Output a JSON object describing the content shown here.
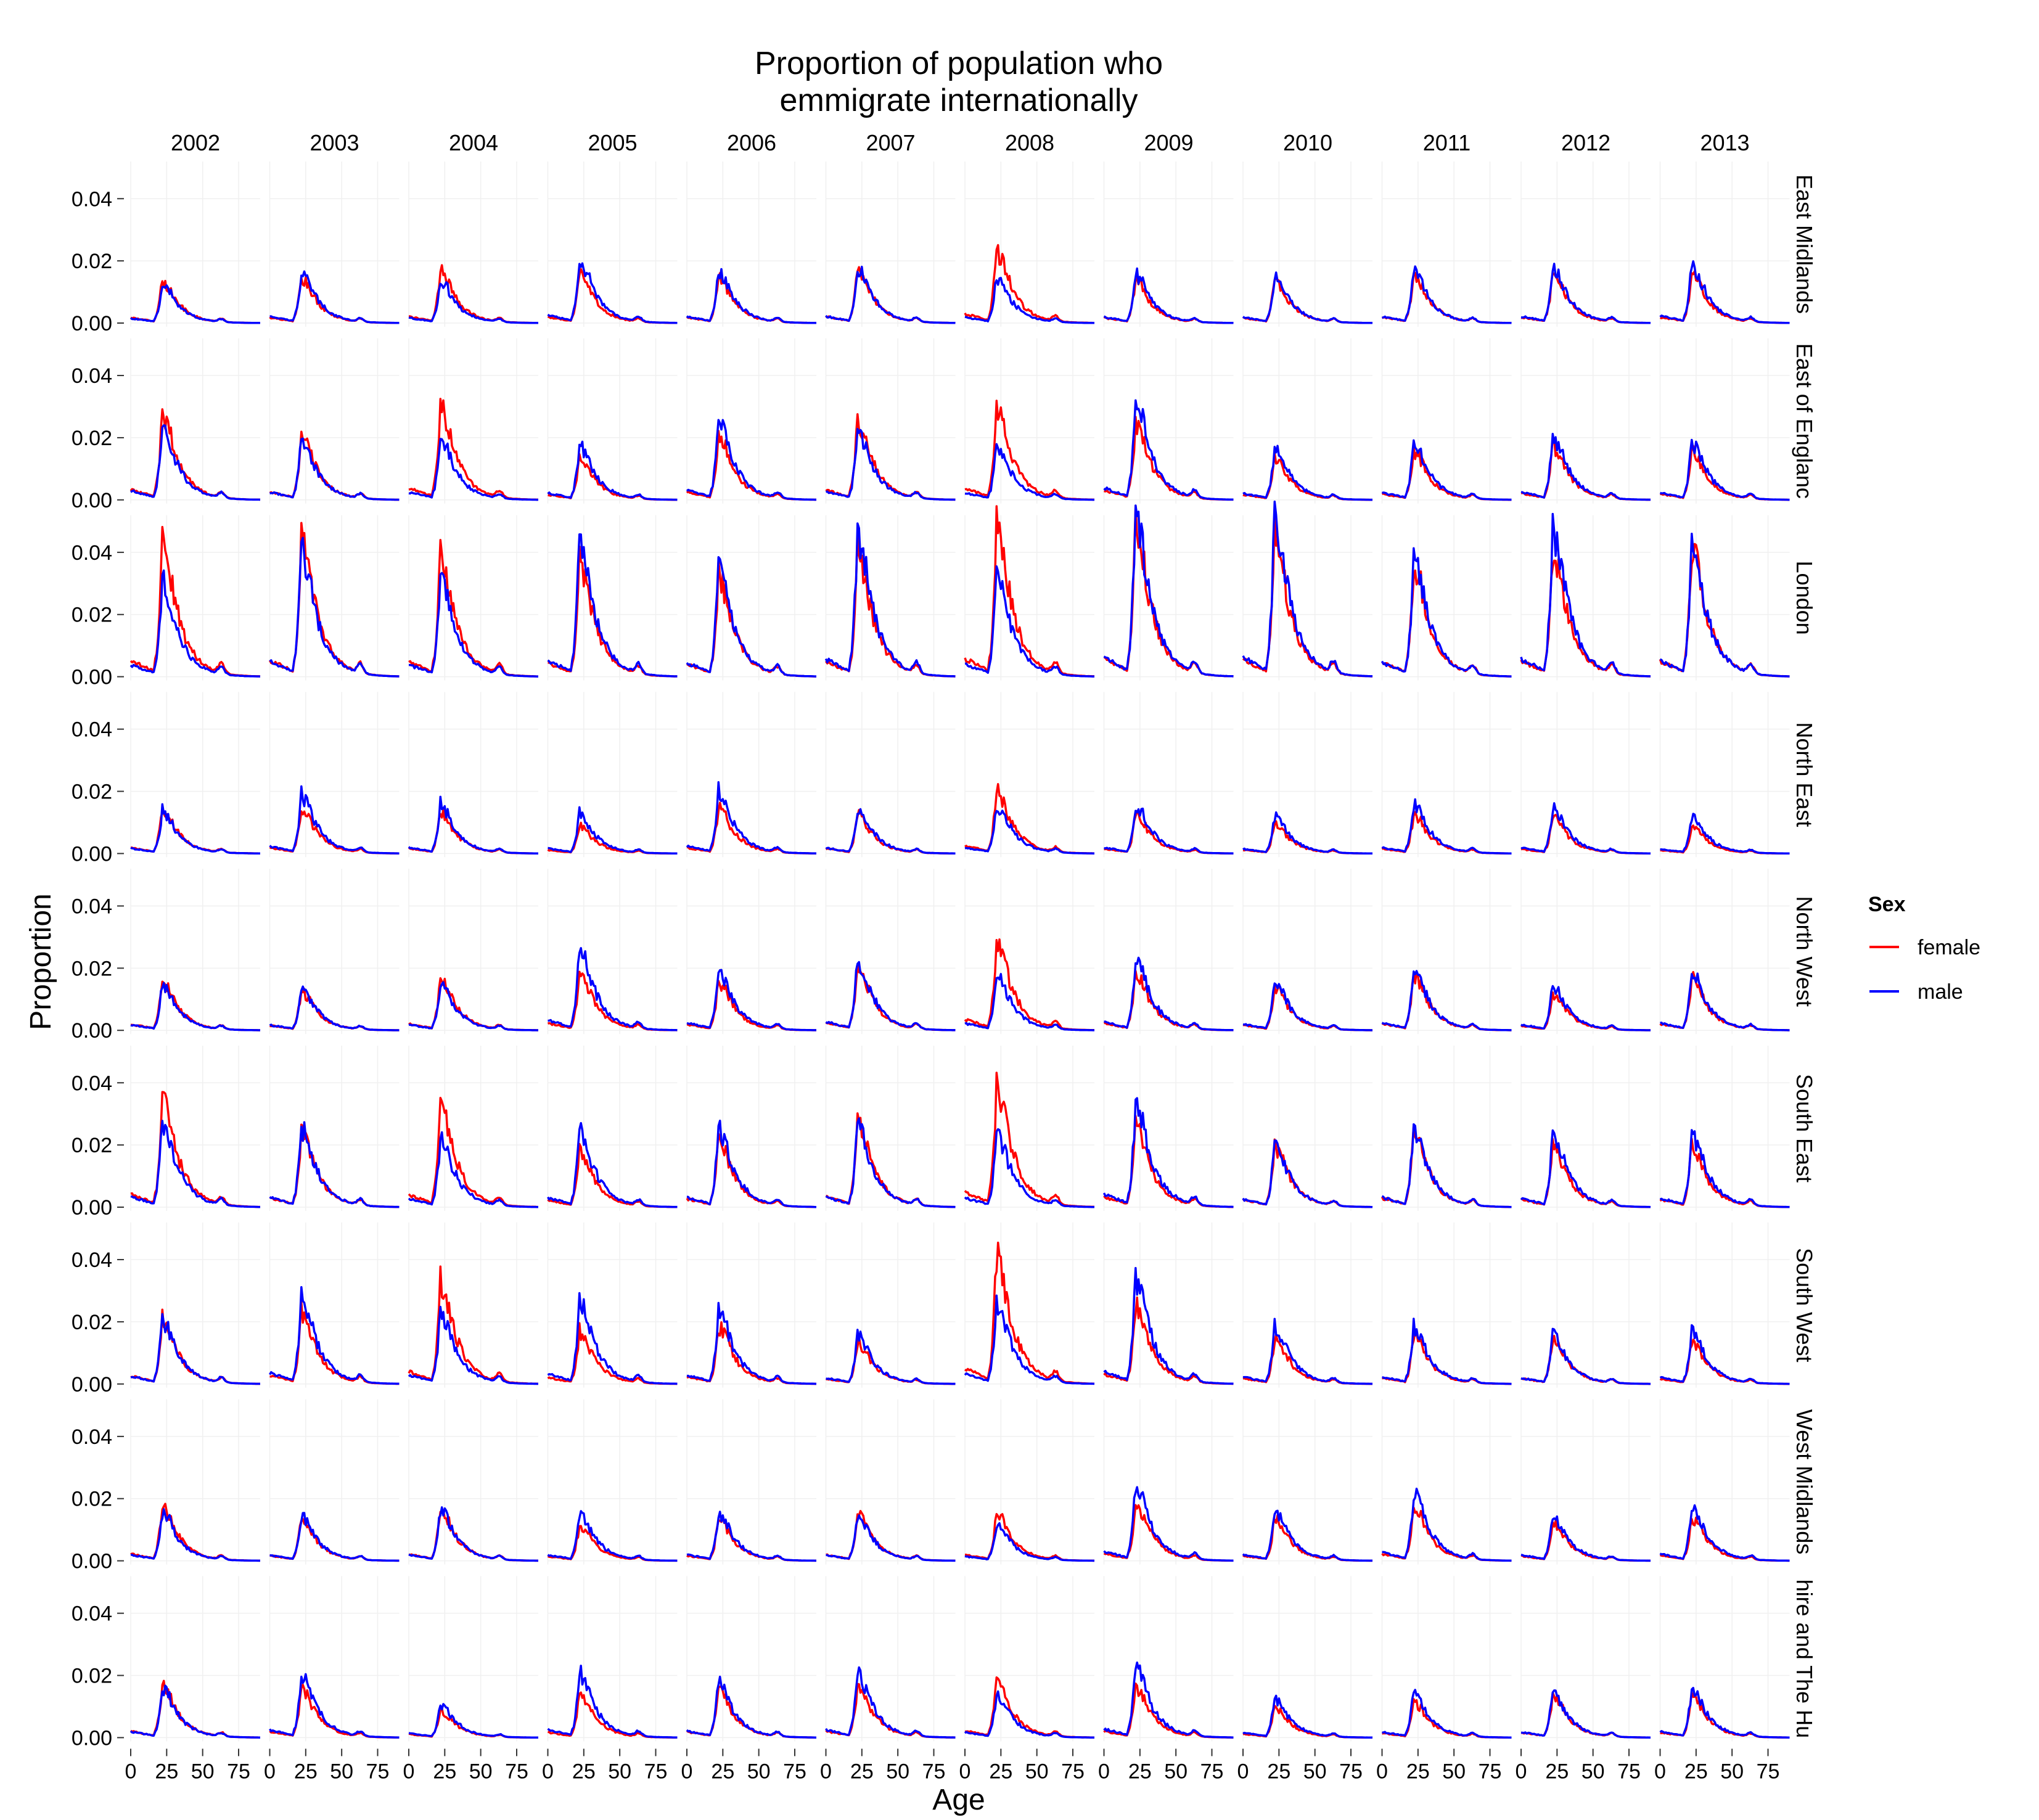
{
  "chart_data": {
    "type": "line",
    "title_lines": [
      "Proportion of population who",
      "emmigrate internationally"
    ],
    "xlabel": "Age",
    "ylabel": "Proportion",
    "legend": {
      "title": "Sex",
      "placement": "right",
      "entries": [
        {
          "name": "female",
          "color": "#ff0000"
        },
        {
          "name": "male",
          "color": "#0000ff"
        }
      ]
    },
    "grid": true,
    "years": [
      "2002",
      "2003",
      "2004",
      "2005",
      "2006",
      "2007",
      "2008",
      "2009",
      "2010",
      "2011",
      "2012",
      "2013"
    ],
    "regions": [
      "East Midlands",
      "East of Englanc",
      "London",
      "North East",
      "North West",
      "South East",
      "South West",
      "West Midlands",
      "hire and The Hu"
    ],
    "xlim": [
      0,
      90
    ],
    "ylim": [
      0,
      0.046
    ],
    "x_ticks": [
      0,
      25,
      50,
      75
    ],
    "x_tick_labels": [
      "0",
      "25",
      "50",
      "75"
    ],
    "y_ticks": [
      0,
      0.02,
      0.04
    ],
    "y_tick_labels": [
      "0.00",
      "0.02",
      "0.04"
    ],
    "note": "Each panel shows the female and male series over age 0-90; approximate peak proportions (around age 22-27) read from the chart are listed per region in year order.",
    "peaks": {
      "East Midlands": {
        "female": [
          0.014,
          0.015,
          0.017,
          0.016,
          0.015,
          0.017,
          0.024,
          0.014,
          0.014,
          0.016,
          0.016,
          0.016
        ],
        "male": [
          0.013,
          0.017,
          0.014,
          0.021,
          0.017,
          0.018,
          0.015,
          0.016,
          0.015,
          0.017,
          0.018,
          0.019
        ]
      },
      "East of Englanc": {
        "female": [
          0.028,
          0.021,
          0.031,
          0.014,
          0.021,
          0.026,
          0.03,
          0.025,
          0.014,
          0.016,
          0.018,
          0.016
        ],
        "male": [
          0.024,
          0.02,
          0.02,
          0.018,
          0.026,
          0.023,
          0.018,
          0.032,
          0.017,
          0.019,
          0.021,
          0.019
        ]
      },
      "London": {
        "female": [
          0.043,
          0.044,
          0.039,
          0.037,
          0.033,
          0.04,
          0.048,
          0.048,
          0.045,
          0.037,
          0.041,
          0.042
        ],
        "male": [
          0.031,
          0.041,
          0.031,
          0.043,
          0.036,
          0.046,
          0.033,
          0.051,
          0.052,
          0.038,
          0.048,
          0.042
        ]
      },
      "North East": {
        "female": [
          0.015,
          0.015,
          0.014,
          0.009,
          0.015,
          0.013,
          0.021,
          0.013,
          0.01,
          0.013,
          0.012,
          0.009
        ],
        "male": [
          0.014,
          0.019,
          0.016,
          0.013,
          0.02,
          0.015,
          0.016,
          0.016,
          0.012,
          0.016,
          0.015,
          0.012
        ]
      },
      "North West": {
        "female": [
          0.016,
          0.013,
          0.017,
          0.019,
          0.016,
          0.021,
          0.029,
          0.019,
          0.014,
          0.018,
          0.012,
          0.017
        ],
        "male": [
          0.015,
          0.014,
          0.015,
          0.027,
          0.02,
          0.023,
          0.018,
          0.023,
          0.016,
          0.02,
          0.015,
          0.019
        ]
      },
      "South East": {
        "female": [
          0.035,
          0.025,
          0.033,
          0.019,
          0.022,
          0.028,
          0.04,
          0.027,
          0.02,
          0.024,
          0.02,
          0.02
        ],
        "male": [
          0.028,
          0.026,
          0.022,
          0.025,
          0.026,
          0.027,
          0.024,
          0.034,
          0.021,
          0.026,
          0.024,
          0.024
        ]
      },
      "South West": {
        "female": [
          0.021,
          0.023,
          0.033,
          0.017,
          0.019,
          0.014,
          0.042,
          0.026,
          0.015,
          0.016,
          0.015,
          0.014
        ],
        "male": [
          0.021,
          0.029,
          0.023,
          0.027,
          0.024,
          0.016,
          0.026,
          0.034,
          0.019,
          0.019,
          0.016,
          0.017
        ]
      },
      "West Midlands": {
        "female": [
          0.018,
          0.014,
          0.017,
          0.012,
          0.014,
          0.016,
          0.016,
          0.019,
          0.014,
          0.018,
          0.013,
          0.014
        ],
        "male": [
          0.016,
          0.015,
          0.017,
          0.016,
          0.016,
          0.015,
          0.012,
          0.025,
          0.017,
          0.022,
          0.015,
          0.018
        ]
      },
      "hire and The Hu": {
        "female": [
          0.017,
          0.016,
          0.009,
          0.014,
          0.016,
          0.017,
          0.019,
          0.017,
          0.01,
          0.012,
          0.014,
          0.014
        ],
        "male": [
          0.016,
          0.021,
          0.011,
          0.021,
          0.018,
          0.021,
          0.014,
          0.023,
          0.013,
          0.015,
          0.015,
          0.016
        ]
      }
    }
  }
}
